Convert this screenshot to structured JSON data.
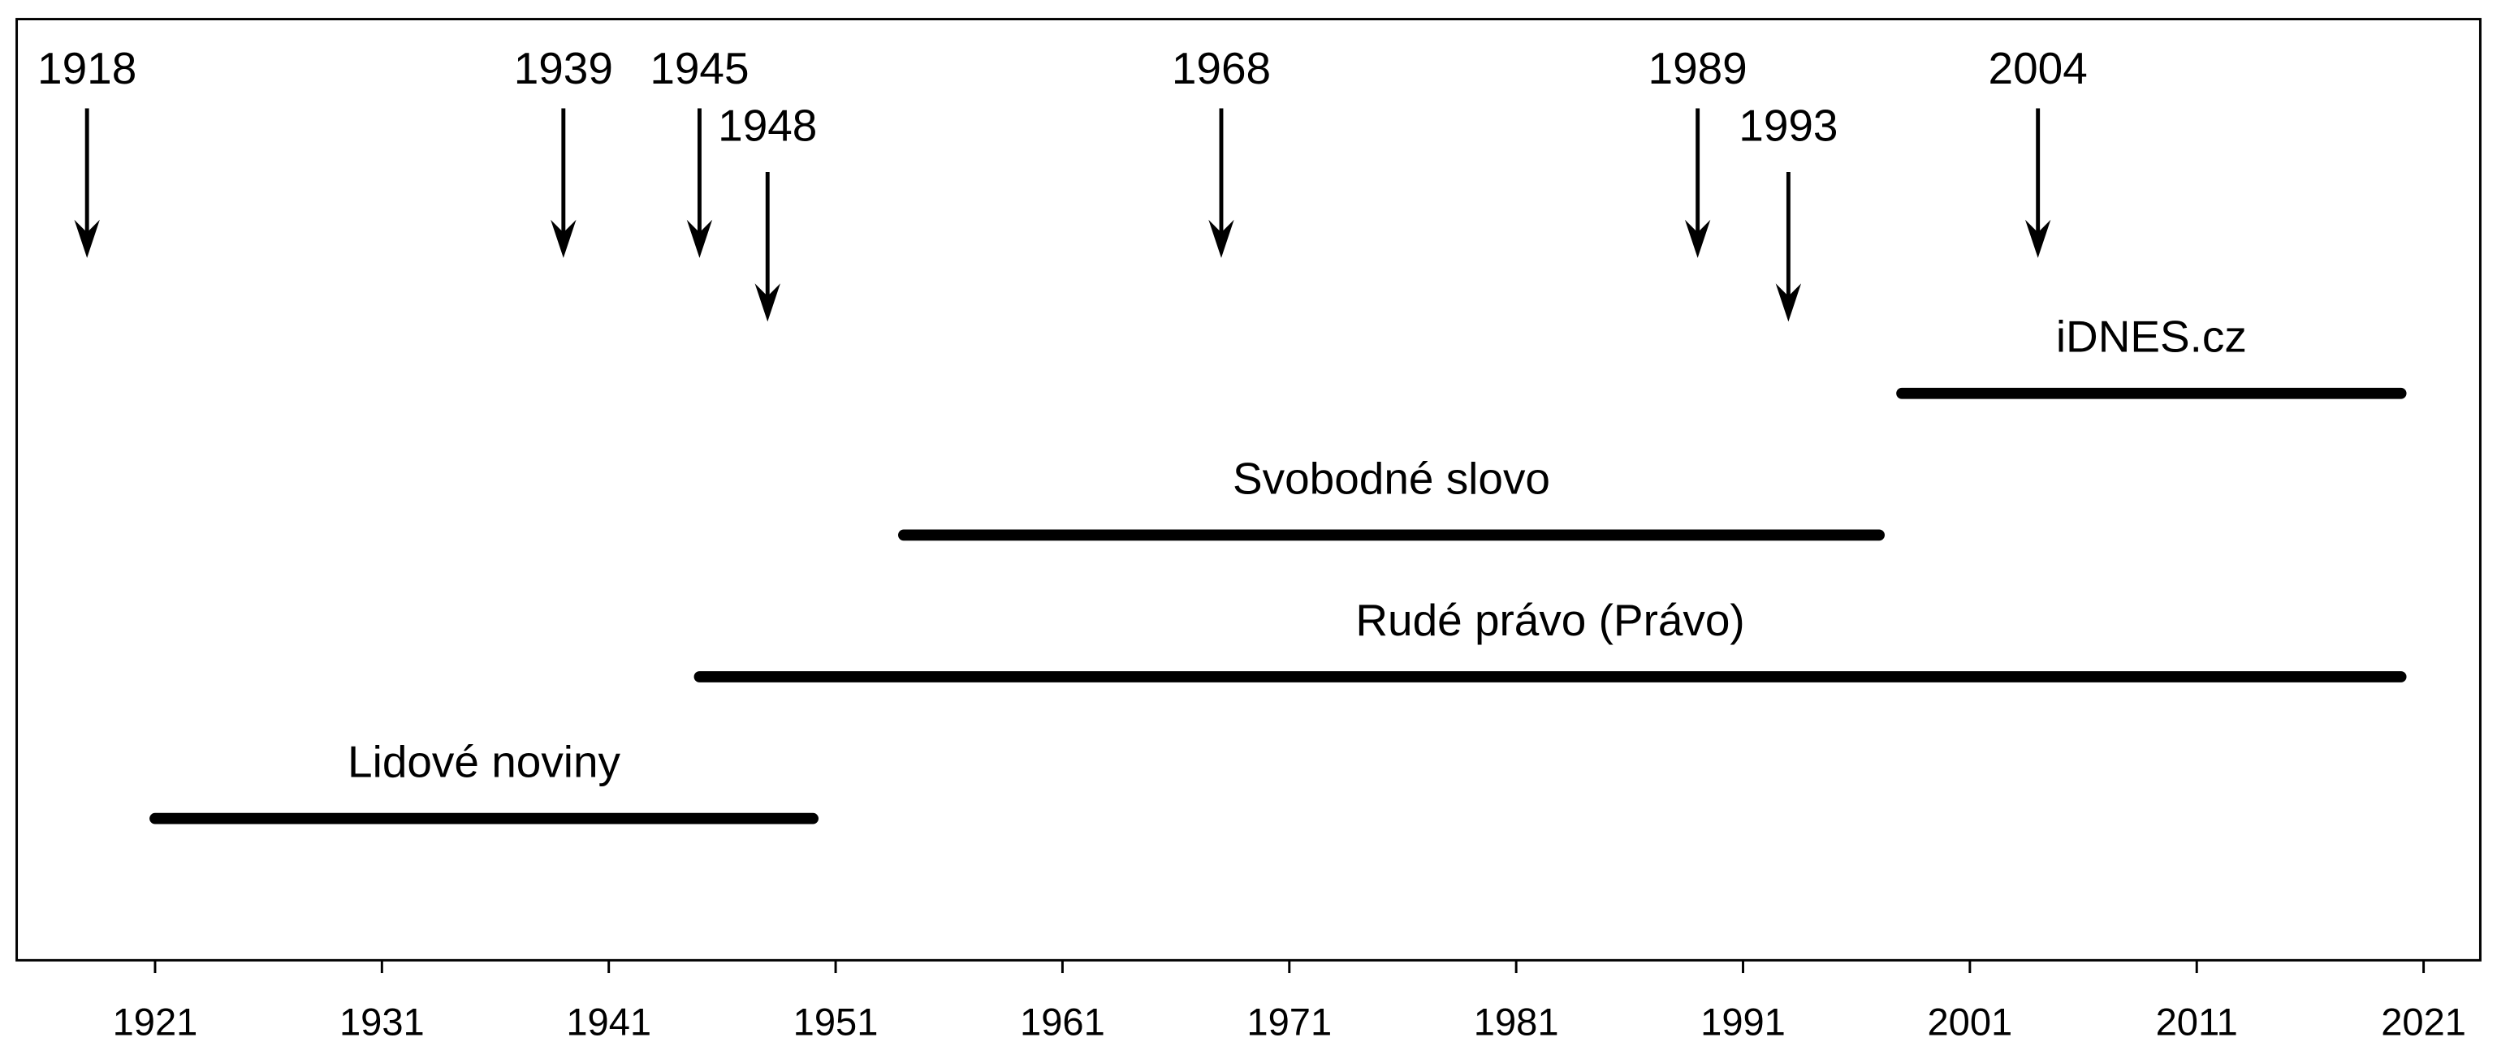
{
  "chart_data": {
    "type": "timeline",
    "xlim": [
      1914.9,
      2023.5
    ],
    "xticks": [
      1921,
      1931,
      1941,
      1951,
      1961,
      1971,
      1981,
      1991,
      2001,
      2011,
      2021
    ],
    "events": [
      1918,
      1939,
      1945,
      1948,
      1968,
      1989,
      1993,
      2004
    ],
    "series": [
      {
        "name": "Lidové noviny",
        "start": 1921,
        "end": 1950
      },
      {
        "name": "Rudé právo (Právo)",
        "start": 1945,
        "end": 2020
      },
      {
        "name": "Svobodné slovo",
        "start": 1954,
        "end": 1997
      },
      {
        "name": "iDNES.cz",
        "start": 1998,
        "end": 2020
      }
    ],
    "color": "#000000"
  }
}
